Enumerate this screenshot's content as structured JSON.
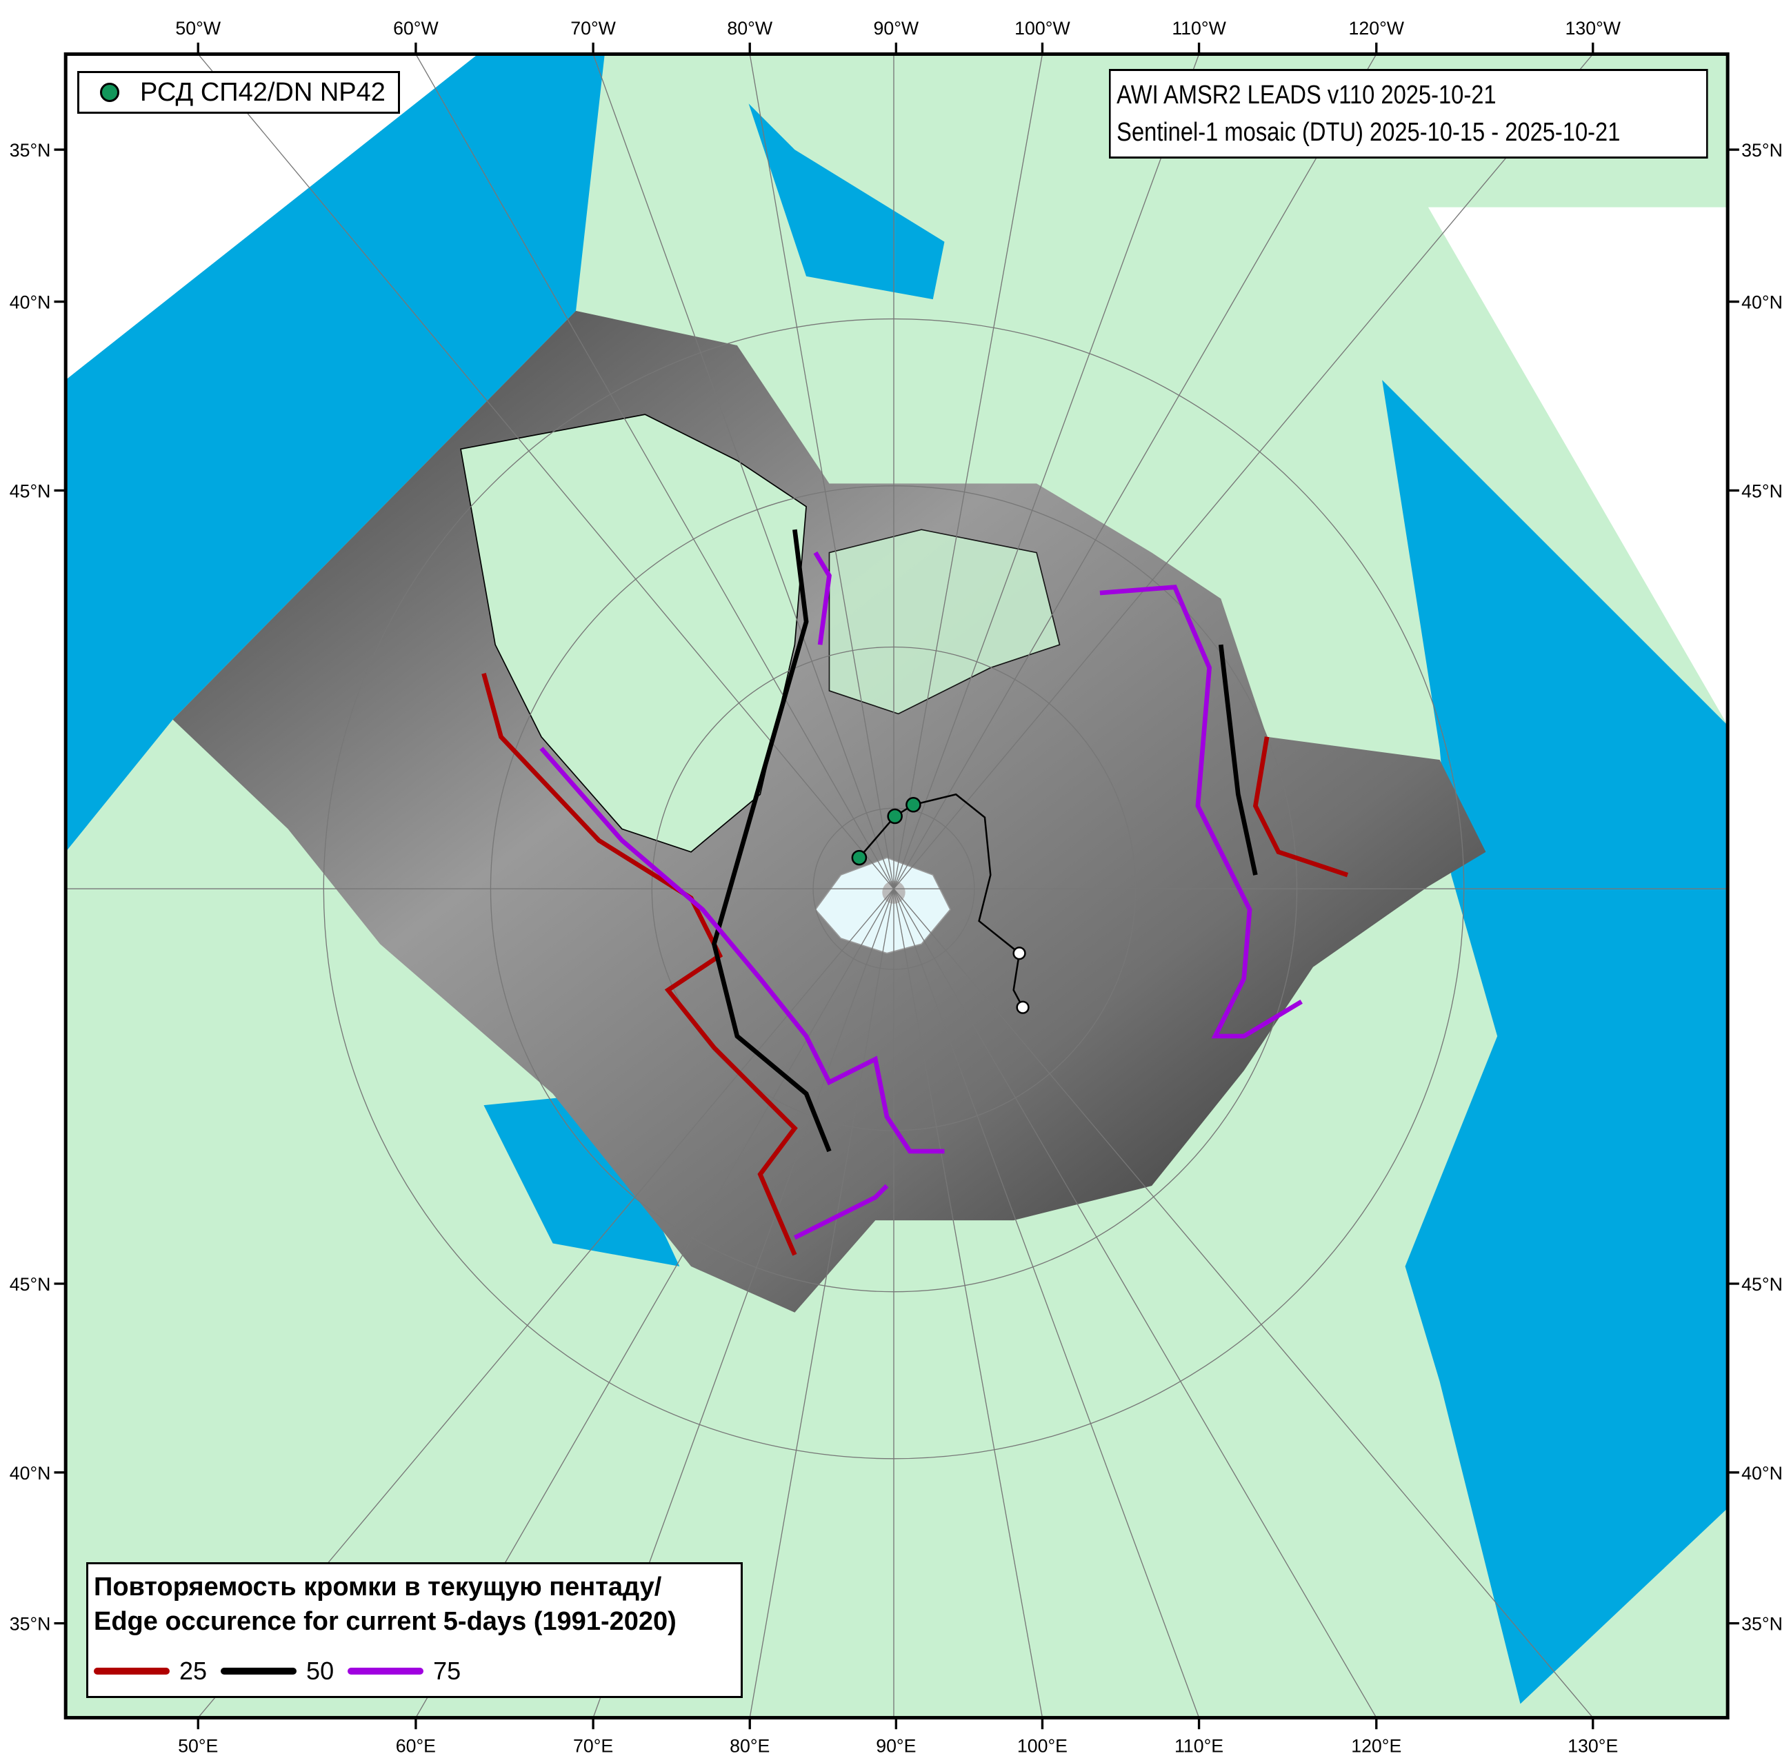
{
  "title": {
    "line1": "AWI AMSR2 LEADS v110 2025-10-21",
    "line2": "Sentinel-1 mosaic (DTU) 2025-10-15 - 2025-10-21"
  },
  "station_legend": {
    "label": "РСД СП42/DN NP42",
    "color": "#11965a"
  },
  "edge_legend": {
    "title_ru": "Повторяемость кромки в текущую пентаду/",
    "title_en": "Edge occurence for current 5-days (1991-2020)",
    "items": [
      {
        "label": "25",
        "color": "#b00000"
      },
      {
        "label": "50",
        "color": "#000000"
      },
      {
        "label": "75",
        "color": "#a000e0"
      }
    ]
  },
  "axes": {
    "top": [
      "50°W",
      "60°W",
      "70°W",
      "80°W",
      "90°W",
      "100°W",
      "110°W",
      "120°W",
      "130°W"
    ],
    "bottom": [
      "50°E",
      "60°E",
      "70°E",
      "80°E",
      "90°E",
      "100°E",
      "110°E",
      "120°E",
      "130°E"
    ],
    "left": [
      "35°N",
      "40°N",
      "45°N",
      "45°N",
      "40°N",
      "35°N"
    ],
    "right": [
      "35°N",
      "40°N",
      "45°N",
      "45°N",
      "40°N",
      "35°N"
    ]
  },
  "colors": {
    "land": "#c8f0d0",
    "ocean": "#00a8e0",
    "frame": "#000000"
  }
}
